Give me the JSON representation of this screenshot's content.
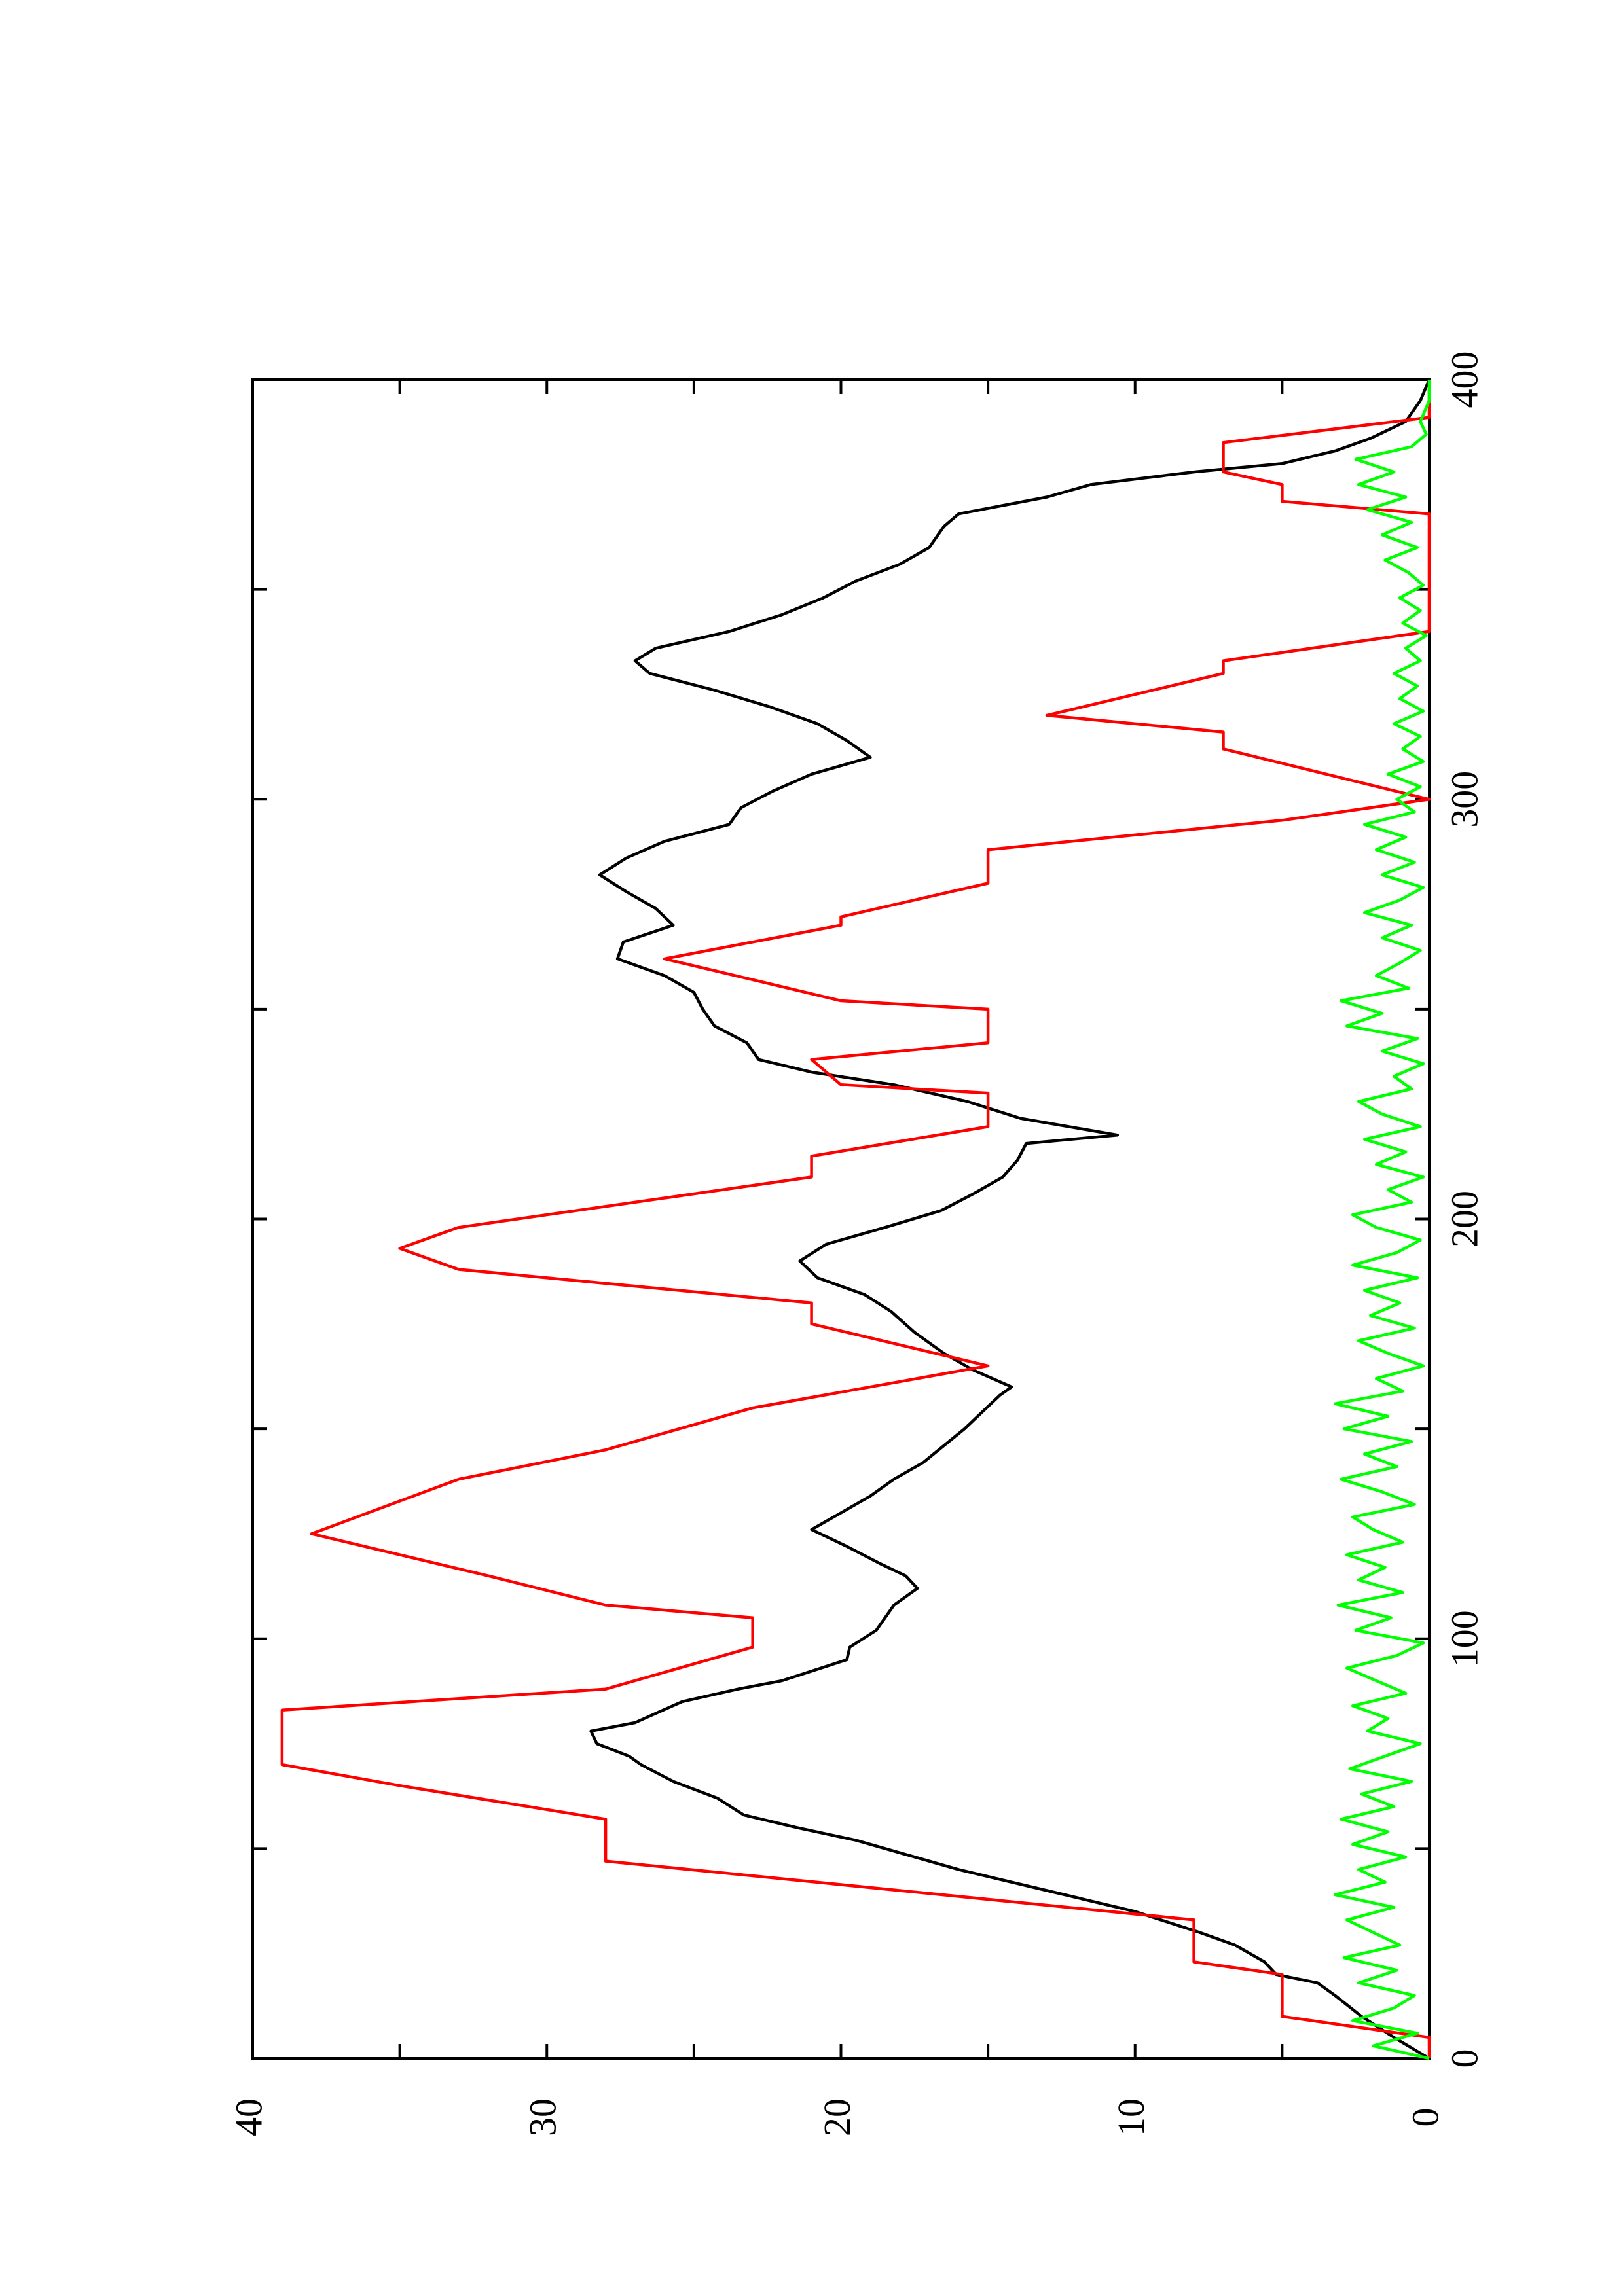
{
  "chart_data": {
    "type": "line",
    "orientation": "rotated-90-ccw",
    "title": "",
    "xlabel": "",
    "ylabel": "",
    "xlim": [
      0,
      400
    ],
    "ylim": [
      0,
      40
    ],
    "x_ticks": [
      "0",
      "100",
      "200",
      "300",
      "400"
    ],
    "y_ticks": [
      "0",
      "10",
      "20",
      "30",
      "40"
    ],
    "grid": false,
    "legend": "none",
    "series": [
      {
        "color": "#000000",
        "points": [
          [
            0,
            0
          ],
          [
            5,
            1.2
          ],
          [
            10,
            2.3
          ],
          [
            15,
            3.2
          ],
          [
            18,
            3.8
          ],
          [
            20,
            5.2
          ],
          [
            23,
            5.6
          ],
          [
            27,
            6.6
          ],
          [
            30,
            7.8
          ],
          [
            35,
            10
          ],
          [
            40,
            13
          ],
          [
            45,
            16
          ],
          [
            48,
            17.5
          ],
          [
            52,
            19.5
          ],
          [
            55,
            21.5
          ],
          [
            58,
            23.3
          ],
          [
            62,
            24.2
          ],
          [
            66,
            25.7
          ],
          [
            70,
            26.8
          ],
          [
            72,
            27.2
          ],
          [
            75,
            28.3
          ],
          [
            78,
            28.5
          ],
          [
            80,
            27
          ],
          [
            85,
            25.4
          ],
          [
            88,
            23.5
          ],
          [
            90,
            22
          ],
          [
            95,
            19.8
          ],
          [
            98,
            19.7
          ],
          [
            102,
            18.8
          ],
          [
            108,
            18.2
          ],
          [
            112,
            17.4
          ],
          [
            115,
            17.8
          ],
          [
            118,
            18.7
          ],
          [
            122,
            19.8
          ],
          [
            126,
            21
          ],
          [
            130,
            20
          ],
          [
            134,
            19
          ],
          [
            138,
            18.2
          ],
          [
            142,
            17.2
          ],
          [
            146,
            16.5
          ],
          [
            150,
            15.8
          ],
          [
            154,
            15.2
          ],
          [
            158,
            14.6
          ],
          [
            160,
            14.2
          ],
          [
            164,
            15.5
          ],
          [
            168,
            16.5
          ],
          [
            170,
            16.9
          ],
          [
            173,
            17.5
          ],
          [
            178,
            18.3
          ],
          [
            182,
            19.2
          ],
          [
            186,
            20.8
          ],
          [
            190,
            21.4
          ],
          [
            194,
            20.5
          ],
          [
            198,
            18.5
          ],
          [
            202,
            16.6
          ],
          [
            206,
            15.5
          ],
          [
            210,
            14.5
          ],
          [
            214,
            14
          ],
          [
            218,
            13.7
          ],
          [
            220,
            10.6
          ],
          [
            224,
            13.9
          ],
          [
            228,
            15.7
          ],
          [
            232,
            18.2
          ],
          [
            235,
            21
          ],
          [
            238,
            22.8
          ],
          [
            242,
            23.2
          ],
          [
            246,
            24.3
          ],
          [
            250,
            24.7
          ],
          [
            254,
            25
          ],
          [
            258,
            26
          ],
          [
            262,
            27.6
          ],
          [
            266,
            27.4
          ],
          [
            270,
            25.7
          ],
          [
            274,
            26.3
          ],
          [
            278,
            27.3
          ],
          [
            282,
            28.2
          ],
          [
            286,
            27.3
          ],
          [
            290,
            26
          ],
          [
            294,
            23.8
          ],
          [
            298,
            23.4
          ],
          [
            302,
            22.3
          ],
          [
            306,
            21
          ],
          [
            310,
            19
          ],
          [
            314,
            19.8
          ],
          [
            318,
            20.8
          ],
          [
            322,
            22.4
          ],
          [
            326,
            24.3
          ],
          [
            330,
            26.5
          ],
          [
            333,
            27
          ],
          [
            336,
            26.3
          ],
          [
            340,
            23.8
          ],
          [
            344,
            22
          ],
          [
            348,
            20.6
          ],
          [
            352,
            19.5
          ],
          [
            356,
            18
          ],
          [
            360,
            17
          ],
          [
            365,
            16.5
          ],
          [
            368,
            16
          ],
          [
            372,
            13
          ],
          [
            375,
            11.5
          ],
          [
            378,
            8
          ],
          [
            380,
            5
          ],
          [
            383,
            3.2
          ],
          [
            386,
            2
          ],
          [
            390,
            0.8
          ],
          [
            395,
            0.3
          ],
          [
            400,
            0
          ]
        ]
      },
      {
        "color": "#ff0000",
        "points": [
          [
            0,
            0
          ],
          [
            5,
            0
          ],
          [
            10,
            5
          ],
          [
            20,
            5
          ],
          [
            23,
            8
          ],
          [
            33,
            8
          ],
          [
            47,
            28
          ],
          [
            57,
            28
          ],
          [
            65,
            35
          ],
          [
            70,
            39
          ],
          [
            83,
            39
          ],
          [
            88,
            28
          ],
          [
            98,
            23
          ],
          [
            105,
            23
          ],
          [
            108,
            28
          ],
          [
            115,
            32
          ],
          [
            125,
            38
          ],
          [
            138,
            33
          ],
          [
            145,
            28
          ],
          [
            155,
            23
          ],
          [
            165,
            15
          ],
          [
            175,
            21
          ],
          [
            180,
            21
          ],
          [
            188,
            33
          ],
          [
            193,
            35
          ],
          [
            198,
            33
          ],
          [
            210,
            21
          ],
          [
            215,
            21
          ],
          [
            222,
            15
          ],
          [
            230,
            15
          ],
          [
            232,
            20
          ],
          [
            238,
            21
          ],
          [
            242,
            15
          ],
          [
            250,
            15
          ],
          [
            252,
            20
          ],
          [
            262,
            26
          ],
          [
            270,
            20
          ],
          [
            272,
            20
          ],
          [
            280,
            15
          ],
          [
            288,
            15
          ],
          [
            295,
            5
          ],
          [
            300,
            0
          ],
          [
            312,
            7
          ],
          [
            316,
            7
          ],
          [
            320,
            13
          ],
          [
            330,
            7
          ],
          [
            333,
            7
          ],
          [
            340,
            0
          ],
          [
            368,
            0
          ],
          [
            371,
            5
          ],
          [
            375,
            5
          ],
          [
            378,
            7
          ],
          [
            385,
            7
          ],
          [
            391,
            0
          ],
          [
            400,
            0
          ]
        ]
      },
      {
        "color": "#00ff00",
        "points": [
          [
            0,
            0
          ],
          [
            3,
            1.9
          ],
          [
            6,
            0.4
          ],
          [
            9,
            2.6
          ],
          [
            12,
            1.2
          ],
          [
            15,
            0.5
          ],
          [
            18,
            2.4
          ],
          [
            21,
            1.1
          ],
          [
            24,
            2.9
          ],
          [
            27,
            1
          ],
          [
            30,
            1.9
          ],
          [
            33,
            2.8
          ],
          [
            36,
            1.2
          ],
          [
            39,
            3.2
          ],
          [
            42,
            1.5
          ],
          [
            45,
            2.4
          ],
          [
            48,
            0.8
          ],
          [
            51,
            2.6
          ],
          [
            54,
            1.4
          ],
          [
            57,
            3
          ],
          [
            60,
            1.2
          ],
          [
            63,
            2.3
          ],
          [
            66,
            0.6
          ],
          [
            69,
            2.7
          ],
          [
            72,
            1.5
          ],
          [
            75,
            0.3
          ],
          [
            78,
            2.1
          ],
          [
            81,
            1.4
          ],
          [
            84,
            2.6
          ],
          [
            87,
            0.8
          ],
          [
            90,
            1.8
          ],
          [
            93,
            2.8
          ],
          [
            96,
            1.1
          ],
          [
            99,
            0.2
          ],
          [
            102,
            2.5
          ],
          [
            105,
            1.3
          ],
          [
            108,
            3.1
          ],
          [
            111,
            0.9
          ],
          [
            114,
            2.4
          ],
          [
            117,
            1.5
          ],
          [
            120,
            2.8
          ],
          [
            123,
            0.9
          ],
          [
            126,
            1.9
          ],
          [
            129,
            2.6
          ],
          [
            132,
            0.5
          ],
          [
            135,
            1.6
          ],
          [
            138,
            3
          ],
          [
            141,
            1.1
          ],
          [
            144,
            2.2
          ],
          [
            147,
            0.6
          ],
          [
            150,
            2.9
          ],
          [
            153,
            1.4
          ],
          [
            156,
            3.2
          ],
          [
            159,
            0.9
          ],
          [
            162,
            1.8
          ],
          [
            165,
            0.2
          ],
          [
            168,
            1.4
          ],
          [
            171,
            2.4
          ],
          [
            174,
            0.5
          ],
          [
            177,
            2
          ],
          [
            180,
            1
          ],
          [
            183,
            2.2
          ],
          [
            186,
            0.4
          ],
          [
            189,
            2.6
          ],
          [
            192,
            1.1
          ],
          [
            195,
            0.3
          ],
          [
            198,
            1.8
          ],
          [
            201,
            2.6
          ],
          [
            204,
            0.6
          ],
          [
            207,
            1.4
          ],
          [
            210,
            0.2
          ],
          [
            213,
            1.8
          ],
          [
            216,
            0.8
          ],
          [
            219,
            2.2
          ],
          [
            222,
            0.3
          ],
          [
            225,
            1.6
          ],
          [
            228,
            2.4
          ],
          [
            231,
            0.6
          ],
          [
            234,
            1.2
          ],
          [
            237,
            0.2
          ],
          [
            240,
            1.6
          ],
          [
            243,
            0.4
          ],
          [
            246,
            2.8
          ],
          [
            249,
            1.6
          ],
          [
            252,
            3
          ],
          [
            255,
            0.7
          ],
          [
            258,
            1.8
          ],
          [
            261,
            1
          ],
          [
            264,
            0.3
          ],
          [
            267,
            1.6
          ],
          [
            270,
            0.6
          ],
          [
            273,
            2.2
          ],
          [
            276,
            1
          ],
          [
            279,
            0.2
          ],
          [
            282,
            1.6
          ],
          [
            285,
            0.5
          ],
          [
            288,
            1.8
          ],
          [
            291,
            0.8
          ],
          [
            294,
            2.2
          ],
          [
            297,
            0.5
          ],
          [
            300,
            1.1
          ],
          [
            303,
            0.3
          ],
          [
            306,
            1.4
          ],
          [
            309,
            0.2
          ],
          [
            312,
            0.9
          ],
          [
            315,
            0.3
          ],
          [
            318,
            1.2
          ],
          [
            321,
            0.2
          ],
          [
            324,
            1
          ],
          [
            327,
            0.4
          ],
          [
            330,
            1.2
          ],
          [
            333,
            0.3
          ],
          [
            336,
            0.8
          ],
          [
            339,
            0.1
          ],
          [
            342,
            0.9
          ],
          [
            345,
            0.3
          ],
          [
            348,
            1
          ],
          [
            351,
            0.2
          ],
          [
            354,
            0.7
          ],
          [
            357,
            1.5
          ],
          [
            360,
            0.4
          ],
          [
            363,
            1.6
          ],
          [
            366,
            0.6
          ],
          [
            369,
            2.1
          ],
          [
            372,
            0.8
          ],
          [
            375,
            2.4
          ],
          [
            378,
            1.2
          ],
          [
            381,
            2.5
          ],
          [
            384,
            0.6
          ],
          [
            387,
            0.1
          ],
          [
            390,
            0.3
          ],
          [
            395,
            0
          ],
          [
            400,
            0
          ]
        ]
      }
    ]
  }
}
